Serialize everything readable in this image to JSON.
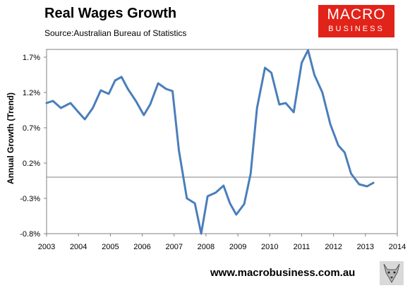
{
  "header": {
    "title": "Real Wages Growth",
    "source": "Source:Australian Bureau of Statistics"
  },
  "logo": {
    "line1": "MACRO",
    "line2": "BUSINESS"
  },
  "footer": {
    "url": "www.macrobusiness.com.au"
  },
  "colors": {
    "line": "#4a7ebb",
    "logo_bg": "#e2231a",
    "zero_line": "#808080"
  },
  "chart_data": {
    "type": "line",
    "title": "Real Wages Growth",
    "ylabel": "Annual Growth (Trend)",
    "xlabel": "",
    "ylim": [
      -0.8,
      1.8
    ],
    "xlim": [
      2003,
      2014
    ],
    "yticks": [
      1.7,
      1.2,
      0.7,
      0.2,
      -0.3,
      -0.8
    ],
    "ytick_labels": [
      "1.7%",
      "1.2%",
      "0.7%",
      "0.2%",
      "-0.3%",
      "-0.8%"
    ],
    "xticks": [
      "2003",
      "2004",
      "2005",
      "2006",
      "2007",
      "2008",
      "2009",
      "2010",
      "2011",
      "2012",
      "2013",
      "2014"
    ],
    "grid": false,
    "series": [
      {
        "values": [
          [
            2003.0,
            1.05
          ],
          [
            2003.2,
            1.08
          ],
          [
            2003.45,
            0.98
          ],
          [
            2003.75,
            1.05
          ],
          [
            2004.0,
            0.92
          ],
          [
            2004.2,
            0.82
          ],
          [
            2004.45,
            0.98
          ],
          [
            2004.7,
            1.23
          ],
          [
            2004.95,
            1.18
          ],
          [
            2005.15,
            1.37
          ],
          [
            2005.35,
            1.42
          ],
          [
            2005.55,
            1.25
          ],
          [
            2005.8,
            1.08
          ],
          [
            2006.05,
            0.88
          ],
          [
            2006.25,
            1.03
          ],
          [
            2006.5,
            1.33
          ],
          [
            2006.75,
            1.25
          ],
          [
            2006.95,
            1.22
          ],
          [
            2007.15,
            0.38
          ],
          [
            2007.4,
            -0.3
          ],
          [
            2007.65,
            -0.37
          ],
          [
            2007.85,
            -0.8
          ],
          [
            2008.05,
            -0.27
          ],
          [
            2008.3,
            -0.22
          ],
          [
            2008.55,
            -0.12
          ],
          [
            2008.75,
            -0.37
          ],
          [
            2008.95,
            -0.53
          ],
          [
            2009.2,
            -0.38
          ],
          [
            2009.4,
            0.05
          ],
          [
            2009.6,
            0.98
          ],
          [
            2009.85,
            1.55
          ],
          [
            2010.05,
            1.48
          ],
          [
            2010.3,
            1.03
          ],
          [
            2010.5,
            1.05
          ],
          [
            2010.75,
            0.92
          ],
          [
            2011.0,
            1.62
          ],
          [
            2011.2,
            1.8
          ],
          [
            2011.4,
            1.45
          ],
          [
            2011.65,
            1.2
          ],
          [
            2011.9,
            0.75
          ],
          [
            2012.15,
            0.45
          ],
          [
            2012.35,
            0.35
          ],
          [
            2012.55,
            0.05
          ],
          [
            2012.8,
            -0.1
          ],
          [
            2013.05,
            -0.13
          ],
          [
            2013.25,
            -0.08
          ]
        ]
      }
    ]
  }
}
